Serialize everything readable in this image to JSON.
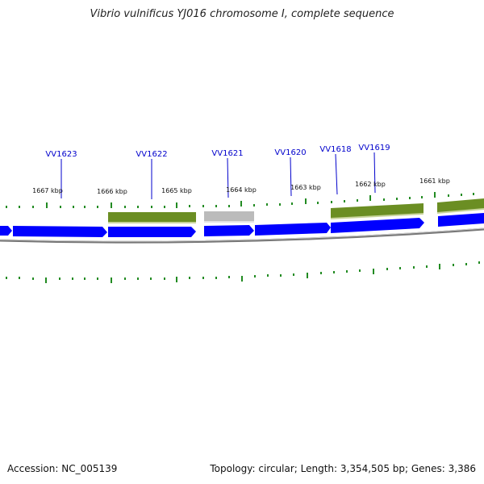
{
  "title": "Vibrio vulnificus YJ016 chromosome I, complete sequence",
  "footer": {
    "accession": "Accession: NC_005139",
    "summary": "Topology: circular; Length: 3,354,505 bp; Genes: 3,386"
  },
  "map": {
    "scale_labels": [
      "1667 kbp",
      "1666 kbp",
      "1665 kbp",
      "1664 kbp",
      "1663 kbp",
      "1662 kbp",
      "1661 kbp"
    ],
    "gene_labels": [
      "VV1623",
      "VV1622",
      "VV1621",
      "VV1620",
      "VV1618",
      "VV1619"
    ],
    "colors": {
      "cds": "#0000ff",
      "gene": "#6b8e23",
      "pseudo": "#bbbbbb",
      "backbone": "#777777",
      "tick": "#228b22",
      "label": "#0000cc"
    }
  }
}
